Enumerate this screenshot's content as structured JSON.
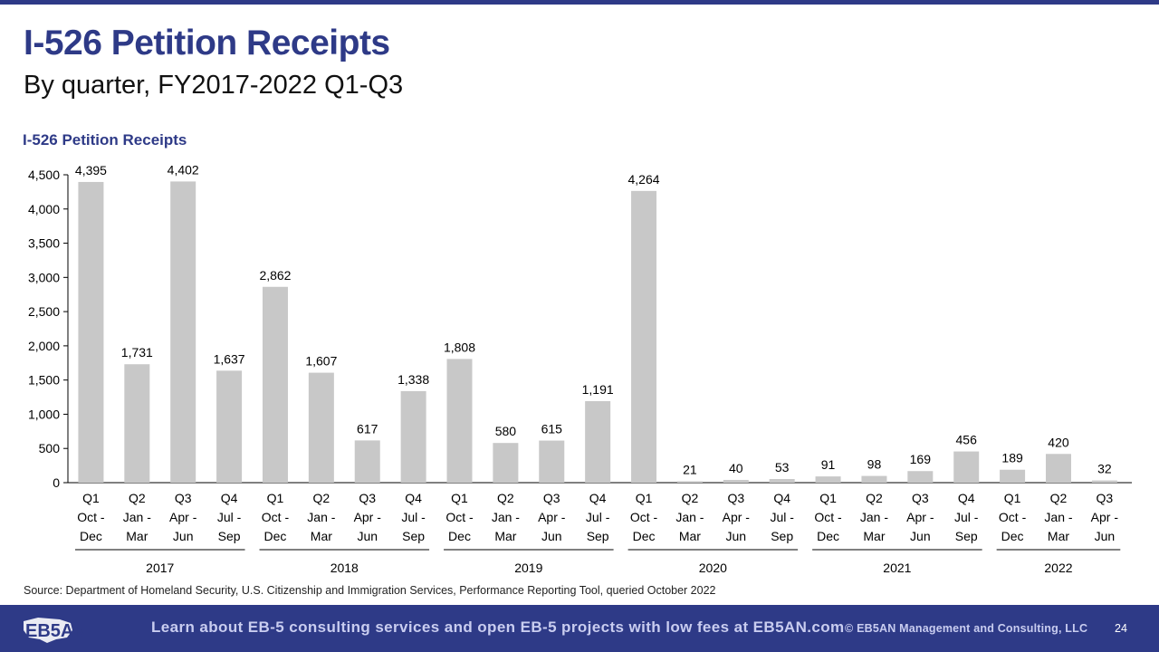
{
  "slide": {
    "title": "I-526 Petition Receipts",
    "subtitle": "By quarter, FY2017-2022 Q1-Q3",
    "source": "Source: Department of Homeland Security, U.S. Citizenship and Immigration Services, Performance Reporting Tool, queried October 2022",
    "footer_text": "Learn about EB-5 consulting services and open EB-5 projects with low fees at EB5AN.com",
    "copyright": "© EB5AN Management and Consulting, LLC",
    "page_number": "24",
    "logo_text": "EB5AN"
  },
  "colors": {
    "brand": "#2e3a87",
    "bar": "#c8c8c8",
    "footer_text": "#c9cdf0"
  },
  "chart_data": {
    "type": "bar",
    "title": "I-526 Petition Receipts",
    "xlabel": "",
    "ylabel": "",
    "ylim": [
      0,
      4500
    ],
    "yticks": [
      "0",
      "500",
      "1,000",
      "1,500",
      "2,000",
      "2,500",
      "3,000",
      "3,500",
      "4,000",
      "4,500"
    ],
    "ytick_values": [
      0,
      500,
      1000,
      1500,
      2000,
      2500,
      3000,
      3500,
      4000,
      4500
    ],
    "grid": false,
    "categories": [
      {
        "q": "Q1",
        "l2": "Oct -",
        "l3": "Dec"
      },
      {
        "q": "Q2",
        "l2": "Jan -",
        "l3": "Mar"
      },
      {
        "q": "Q3",
        "l2": "Apr -",
        "l3": "Jun"
      },
      {
        "q": "Q4",
        "l2": "Jul -",
        "l3": "Sep"
      },
      {
        "q": "Q1",
        "l2": "Oct -",
        "l3": "Dec"
      },
      {
        "q": "Q2",
        "l2": "Jan -",
        "l3": "Mar"
      },
      {
        "q": "Q3",
        "l2": "Apr -",
        "l3": "Jun"
      },
      {
        "q": "Q4",
        "l2": "Jul -",
        "l3": "Sep"
      },
      {
        "q": "Q1",
        "l2": "Oct -",
        "l3": "Dec"
      },
      {
        "q": "Q2",
        "l2": "Jan -",
        "l3": "Mar"
      },
      {
        "q": "Q3",
        "l2": "Apr -",
        "l3": "Jun"
      },
      {
        "q": "Q4",
        "l2": "Jul -",
        "l3": "Sep"
      },
      {
        "q": "Q1",
        "l2": "Oct -",
        "l3": "Dec"
      },
      {
        "q": "Q2",
        "l2": "Jan -",
        "l3": "Mar"
      },
      {
        "q": "Q3",
        "l2": "Apr -",
        "l3": "Jun"
      },
      {
        "q": "Q4",
        "l2": "Jul -",
        "l3": "Sep"
      },
      {
        "q": "Q1",
        "l2": "Oct -",
        "l3": "Dec"
      },
      {
        "q": "Q2",
        "l2": "Jan -",
        "l3": "Mar"
      },
      {
        "q": "Q3",
        "l2": "Apr -",
        "l3": "Jun"
      },
      {
        "q": "Q4",
        "l2": "Jul -",
        "l3": "Sep"
      },
      {
        "q": "Q1",
        "l2": "Oct -",
        "l3": "Dec"
      },
      {
        "q": "Q2",
        "l2": "Jan -",
        "l3": "Mar"
      },
      {
        "q": "Q3",
        "l2": "Apr -",
        "l3": "Jun"
      }
    ],
    "years": [
      {
        "label": "2017",
        "count": 4
      },
      {
        "label": "2018",
        "count": 4
      },
      {
        "label": "2019",
        "count": 4
      },
      {
        "label": "2020",
        "count": 4
      },
      {
        "label": "2021",
        "count": 4
      },
      {
        "label": "2022",
        "count": 3
      }
    ],
    "values": [
      4395,
      1731,
      4402,
      1637,
      2862,
      1607,
      617,
      1338,
      1808,
      580,
      615,
      1191,
      4264,
      21,
      40,
      53,
      91,
      98,
      169,
      456,
      189,
      420,
      32
    ],
    "value_labels": [
      "4,395",
      "1,731",
      "4,402",
      "1,637",
      "2,862",
      "1,607",
      "617",
      "1,338",
      "1,808",
      "580",
      "615",
      "1,191",
      "4,264",
      "21",
      "40",
      "53",
      "91",
      "98",
      "169",
      "456",
      "189",
      "420",
      "32"
    ]
  }
}
